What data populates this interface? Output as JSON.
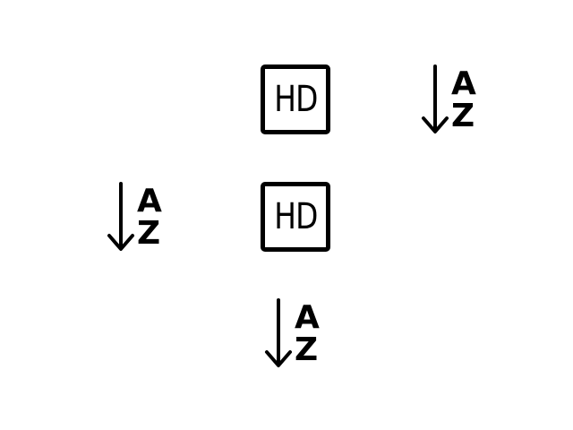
{
  "icons": {
    "sort_alpha_1": {
      "name": "sort-alpha-down-icon",
      "letter_top": "A",
      "letter_bottom": "Z"
    },
    "sort_alpha_2": {
      "name": "sort-alpha-down-icon",
      "letter_top": "A",
      "letter_bottom": "Z"
    },
    "sort_alpha_3": {
      "name": "sort-alpha-down-icon",
      "letter_top": "A",
      "letter_bottom": "Z"
    },
    "hd_1": {
      "name": "hd-icon",
      "label": "HD"
    },
    "hd_2": {
      "name": "hd-icon",
      "label": "HD"
    }
  },
  "colors": {
    "foreground": "#000000",
    "background": "#ffffff"
  }
}
